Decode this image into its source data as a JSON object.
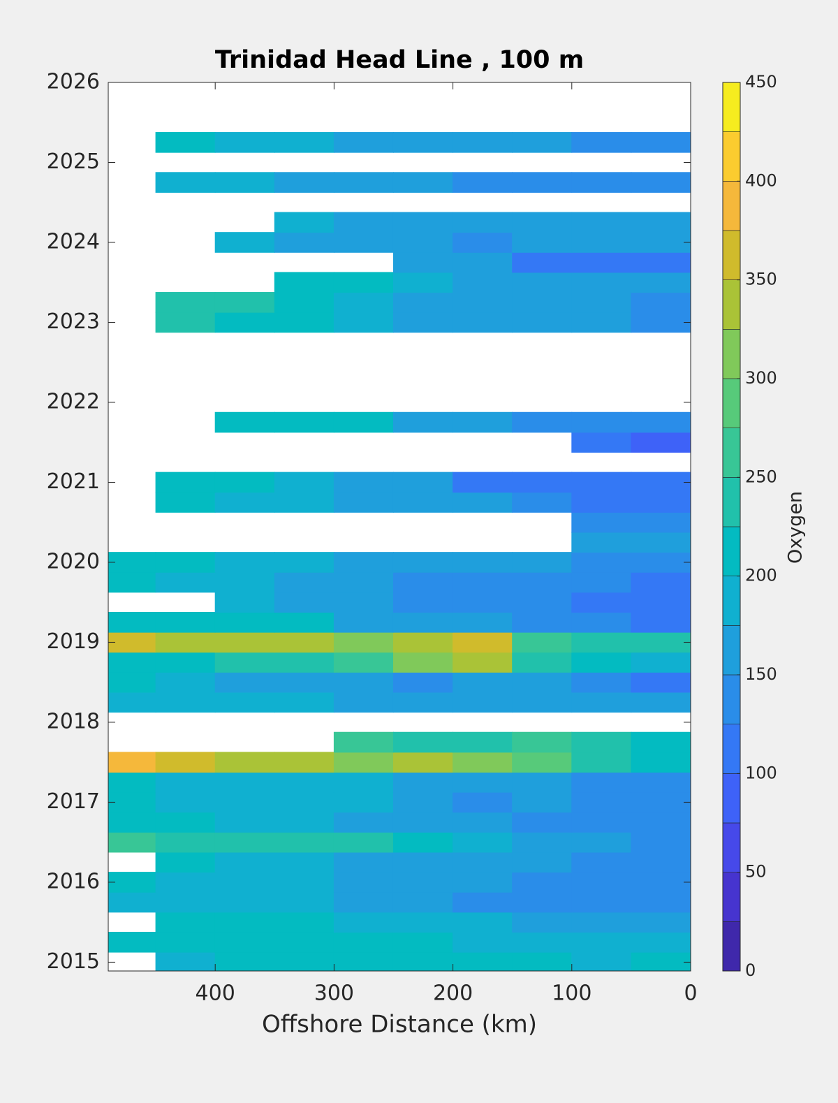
{
  "chart_data": {
    "type": "contour",
    "title": "Trinidad Head Line , 100 m",
    "x_label": "Offshore Distance (km)",
    "colorbar_label": "Oxygen",
    "xlim": [
      490,
      0
    ],
    "ylim": [
      2014.89,
      2026
    ],
    "xticks": [
      400,
      300,
      200,
      100,
      0
    ],
    "yticks": [
      2015,
      2016,
      2017,
      2018,
      2019,
      2020,
      2021,
      2022,
      2023,
      2024,
      2025,
      2026
    ],
    "clim": [
      0,
      450
    ],
    "cticks": [
      0,
      50,
      100,
      150,
      200,
      250,
      300,
      350,
      400,
      450
    ],
    "colors": [
      "#3f28ab",
      "#4634cf",
      "#4649ea",
      "#3e62f8",
      "#3478f5",
      "#2a8de9",
      "#1f9fdc",
      "#10b0d0",
      "#03bbc1",
      "#21c1ab",
      "#38c696",
      "#57ca7a",
      "#80c95a",
      "#aac337",
      "#d0bb2c",
      "#f5b83b",
      "#fbcc2f",
      "#f6ec1f"
    ],
    "x": [
      475,
      425,
      375,
      325,
      275,
      225,
      175,
      125,
      75,
      25
    ],
    "y": [
      2015.0,
      2015.25,
      2015.5,
      2015.75,
      2016.0,
      2016.25,
      2016.5,
      2016.75,
      2017.0,
      2017.25,
      2017.5,
      2017.75,
      2018.0,
      2018.25,
      2018.5,
      2018.75,
      2019.0,
      2019.25,
      2019.5,
      2019.75,
      2020.0,
      2020.25,
      2020.5,
      2020.75,
      2021.0,
      2021.25,
      2021.5,
      2021.75,
      2022.0,
      2022.25,
      2022.5,
      2022.75,
      2023.0,
      2023.25,
      2023.5,
      2023.75,
      2024.0,
      2024.25,
      2024.5,
      2024.75,
      2025.0,
      2025.25
    ],
    "z": [
      [
        null,
        195,
        200,
        205,
        205,
        200,
        210,
        200,
        195,
        200
      ],
      [
        215,
        210,
        205,
        210,
        200,
        200,
        190,
        195,
        185,
        180
      ],
      [
        null,
        205,
        200,
        200,
        190,
        185,
        175,
        165,
        160,
        150
      ],
      [
        190,
        185,
        180,
        175,
        160,
        150,
        140,
        130,
        140,
        140
      ],
      [
        200,
        195,
        185,
        175,
        165,
        160,
        150,
        140,
        135,
        130
      ],
      [
        null,
        200,
        195,
        185,
        170,
        160,
        155,
        150,
        145,
        140
      ],
      [
        250,
        240,
        235,
        230,
        230,
        200,
        180,
        160,
        150,
        140
      ],
      [
        200,
        200,
        190,
        180,
        170,
        160,
        150,
        140,
        130,
        130
      ],
      [
        200,
        195,
        190,
        180,
        175,
        160,
        130,
        150,
        140,
        140
      ],
      [
        200,
        195,
        185,
        180,
        175,
        170,
        165,
        150,
        140,
        130
      ],
      [
        390,
        370,
        340,
        330,
        310,
        340,
        300,
        280,
        230,
        200
      ],
      [
        null,
        null,
        null,
        null,
        250,
        230,
        240,
        270,
        230,
        220
      ],
      [
        null,
        null,
        null,
        null,
        null,
        null,
        null,
        null,
        null,
        null
      ],
      [
        190,
        185,
        180,
        175,
        170,
        165,
        160,
        160,
        160,
        150
      ],
      [
        200,
        190,
        170,
        160,
        150,
        140,
        160,
        150,
        140,
        120
      ],
      [
        220,
        220,
        230,
        240,
        260,
        320,
        330,
        240,
        200,
        180
      ],
      [
        350,
        330,
        340,
        330,
        310,
        340,
        360,
        250,
        230,
        240
      ],
      [
        210,
        200,
        210,
        200,
        170,
        160,
        150,
        140,
        130,
        120
      ],
      [
        null,
        null,
        180,
        160,
        150,
        140,
        130,
        130,
        120,
        100
      ],
      [
        200,
        195,
        190,
        170,
        150,
        140,
        130,
        140,
        130,
        120
      ],
      [
        200,
        200,
        190,
        180,
        170,
        165,
        160,
        150,
        140,
        130
      ],
      [
        null,
        null,
        null,
        null,
        null,
        null,
        null,
        null,
        150,
        150
      ],
      [
        null,
        null,
        null,
        null,
        null,
        null,
        null,
        null,
        145,
        145
      ],
      [
        null,
        200,
        190,
        180,
        170,
        160,
        150,
        130,
        120,
        120
      ],
      [
        null,
        210,
        200,
        190,
        170,
        150,
        120,
        110,
        110,
        110
      ],
      [
        null,
        null,
        null,
        null,
        null,
        null,
        null,
        null,
        null,
        null
      ],
      [
        null,
        null,
        null,
        null,
        null,
        null,
        null,
        null,
        100,
        95
      ],
      [
        null,
        null,
        220,
        215,
        200,
        170,
        150,
        140,
        130,
        130
      ],
      [
        null,
        null,
        null,
        null,
        null,
        null,
        null,
        null,
        null,
        null
      ],
      [
        null,
        null,
        null,
        null,
        null,
        null,
        null,
        null,
        null,
        null
      ],
      [
        null,
        null,
        null,
        null,
        null,
        null,
        null,
        null,
        null,
        null
      ],
      [
        null,
        null,
        null,
        null,
        null,
        null,
        null,
        null,
        null,
        null
      ],
      [
        null,
        230,
        220,
        200,
        180,
        170,
        160,
        150,
        150,
        140
      ],
      [
        null,
        240,
        230,
        210,
        190,
        170,
        160,
        150,
        150,
        140
      ],
      [
        null,
        null,
        null,
        220,
        210,
        190,
        170,
        160,
        150,
        150
      ],
      [
        null,
        null,
        null,
        null,
        null,
        170,
        150,
        110,
        100,
        100
      ],
      [
        null,
        null,
        180,
        170,
        160,
        150,
        140,
        150,
        160,
        150
      ],
      [
        null,
        null,
        null,
        180,
        170,
        165,
        160,
        150,
        150,
        150
      ],
      [
        null,
        null,
        null,
        null,
        null,
        null,
        null,
        null,
        null,
        null
      ],
      [
        null,
        190,
        180,
        170,
        160,
        150,
        140,
        130,
        130,
        130
      ],
      [
        null,
        null,
        null,
        null,
        null,
        null,
        null,
        null,
        null,
        null
      ],
      [
        null,
        200,
        190,
        180,
        170,
        160,
        170,
        150,
        140,
        130
      ]
    ]
  }
}
